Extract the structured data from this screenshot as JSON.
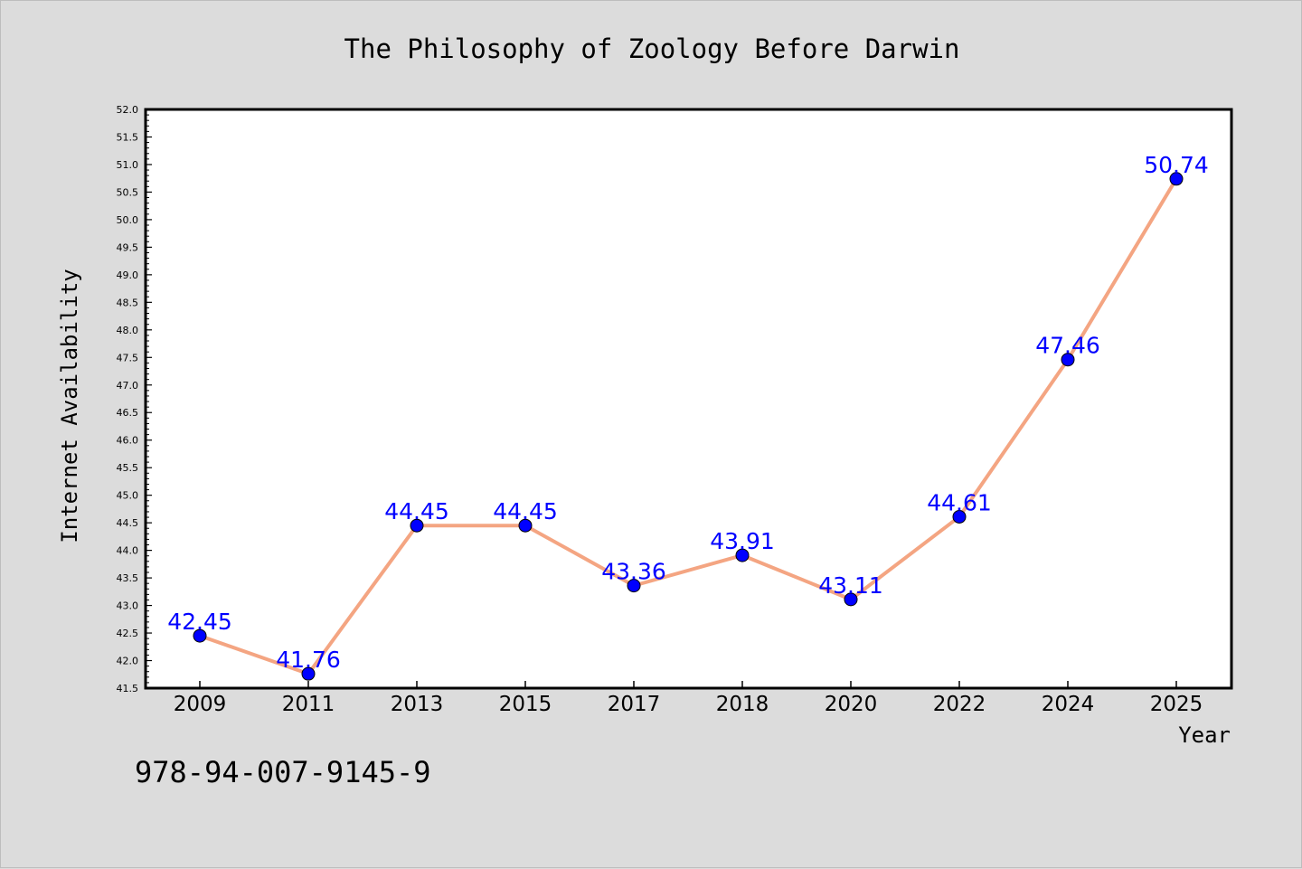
{
  "chart_data": {
    "type": "line",
    "title": "The Philosophy of Zoology Before Darwin",
    "xlabel": "Year",
    "ylabel": "Internet Availability",
    "categories": [
      "2009",
      "2011",
      "2013",
      "2015",
      "2017",
      "2018",
      "2020",
      "2022",
      "2024",
      "2025"
    ],
    "series": [
      {
        "values": [
          42.45,
          41.76,
          44.45,
          44.45,
          43.36,
          43.91,
          43.11,
          44.61,
          47.46,
          50.74
        ],
        "data_labels": [
          "42.45",
          "41.76",
          "44.45",
          "44.45",
          "43.36",
          "43.91",
          "43.11",
          "44.61",
          "47.46",
          "50.74"
        ]
      }
    ],
    "ylim": [
      41.5,
      52.0
    ],
    "yticks": [
      "41.5",
      "42.0",
      "42.5",
      "43.0",
      "43.5",
      "44.0",
      "44.5",
      "45.0",
      "45.5",
      "46.0",
      "46.5",
      "47.0",
      "47.5",
      "48.0",
      "48.5",
      "49.0",
      "49.5",
      "50.0",
      "50.5",
      "51.0",
      "51.5",
      "52.0"
    ],
    "grid": false,
    "colors": {
      "line": "#f4a582",
      "marker": "#0000ff",
      "data_label": "#0000ff",
      "plot_background": "#ffffff",
      "page_background": "#dcdcdc"
    }
  },
  "annotations": {
    "isbn": "978-94-007-9145-9"
  }
}
